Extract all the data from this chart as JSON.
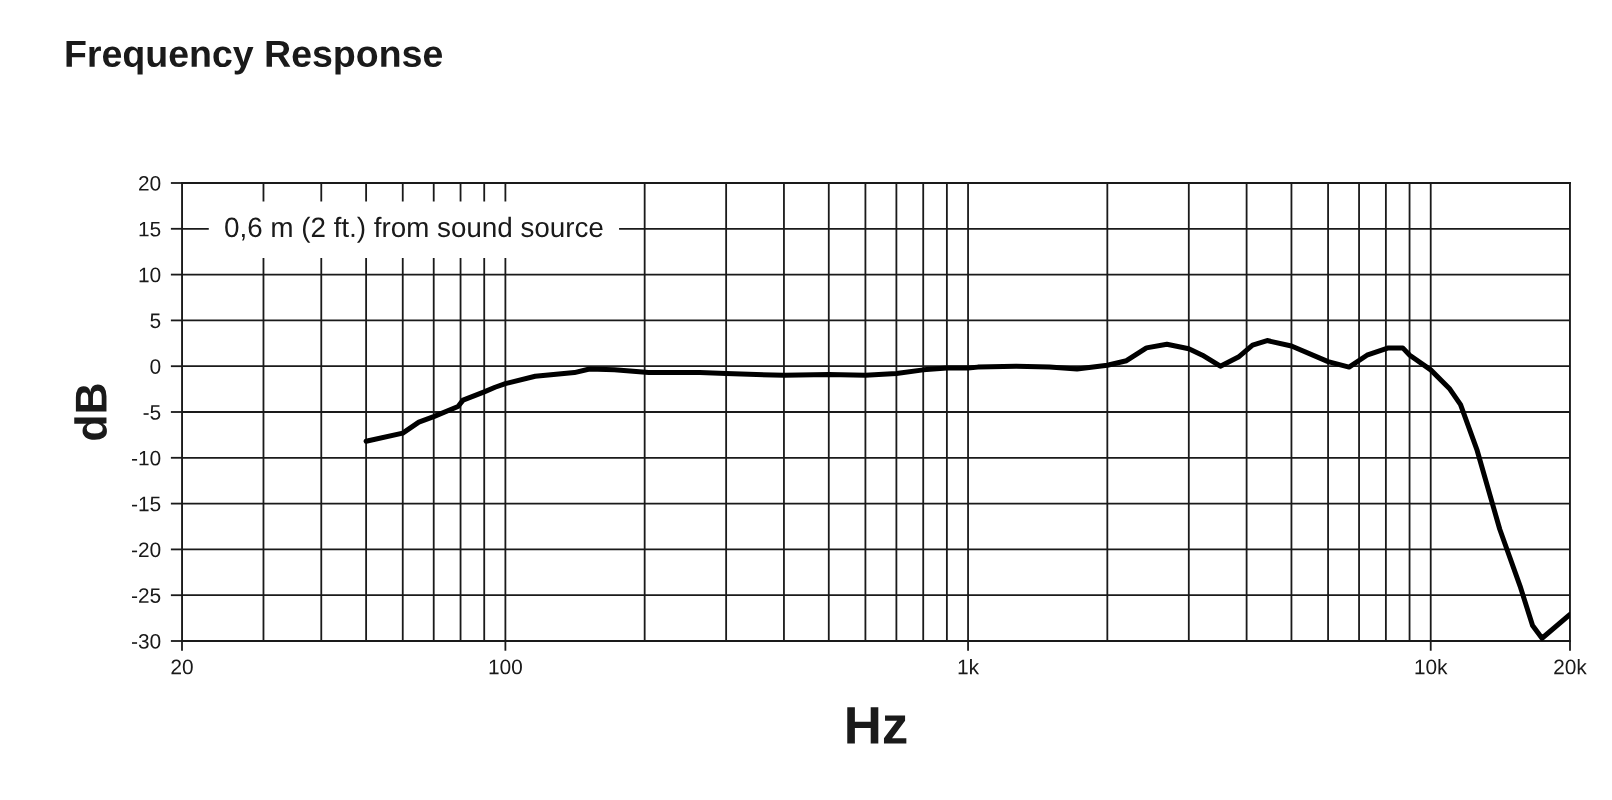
{
  "chart_data": {
    "type": "line",
    "title": "Frequency Response",
    "xlabel": "Hz",
    "ylabel": "dB",
    "annotations": [
      "0,6 m (2 ft.) from sound source"
    ],
    "log": "x",
    "grid": true,
    "line_style": "solid",
    "xlim": [
      20,
      20000
    ],
    "ylim": [
      -30,
      20
    ],
    "xticks": [
      20,
      {
        "value": 30,
        "label": null
      },
      {
        "value": 40,
        "label": null
      },
      {
        "value": 50,
        "label": null
      },
      {
        "value": 60,
        "label": null
      },
      {
        "value": 70,
        "label": null
      },
      {
        "value": 80,
        "label": null
      },
      {
        "value": 90,
        "label": null
      },
      100,
      {
        "value": 200,
        "label": null
      },
      {
        "value": 300,
        "label": null
      },
      {
        "value": 400,
        "label": null
      },
      {
        "value": 500,
        "label": null
      },
      {
        "value": 600,
        "label": null
      },
      {
        "value": 700,
        "label": null
      },
      {
        "value": 800,
        "label": null
      },
      {
        "value": 900,
        "label": null
      },
      {
        "value": 1000,
        "label": "1k"
      },
      {
        "value": 2000,
        "label": null
      },
      {
        "value": 3000,
        "label": null
      },
      {
        "value": 4000,
        "label": null
      },
      {
        "value": 5000,
        "label": null
      },
      {
        "value": 6000,
        "label": null
      },
      {
        "value": 7000,
        "label": null
      },
      {
        "value": 8000,
        "label": null
      },
      {
        "value": 9000,
        "label": null
      },
      {
        "value": 10000,
        "label": "10k"
      },
      {
        "value": 20000,
        "label": "20k"
      }
    ],
    "yticks": [
      -30,
      -25,
      -20,
      -15,
      -10,
      -5,
      0,
      5,
      10,
      15,
      20
    ],
    "series": [
      {
        "color": "#000000",
        "x": [
          50,
          60,
          65,
          70,
          79,
          81,
          90,
          95,
          100,
          116,
          141,
          152,
          172,
          204,
          263,
          300,
          400,
          500,
          600,
          700,
          800,
          900,
          1000,
          1050,
          1270,
          1500,
          1720,
          2000,
          2200,
          2310,
          2430,
          2690,
          3000,
          3210,
          3510,
          3840,
          4120,
          4430,
          5000,
          6000,
          6660,
          7280,
          8100,
          8700,
          9010,
          10000,
          11000,
          11600,
          12600,
          14100,
          15600,
          16600,
          17400,
          20000
        ],
        "values": [
          -8.2,
          -7.3,
          -6.1,
          -5.5,
          -4.4,
          -3.7,
          -2.8,
          -2.3,
          -1.9,
          -1.1,
          -0.7,
          -0.3,
          -0.4,
          -0.7,
          -0.7,
          -0.8,
          -1.0,
          -0.9,
          -1.0,
          -0.8,
          -0.4,
          -0.2,
          -0.2,
          -0.1,
          0.0,
          -0.1,
          -0.3,
          0.1,
          0.6,
          1.3,
          2.0,
          2.4,
          1.9,
          1.2,
          0.0,
          1.0,
          2.3,
          2.8,
          2.2,
          0.5,
          -0.1,
          1.2,
          2.0,
          2.0,
          1.2,
          -0.4,
          -2.5,
          -4.2,
          -9.2,
          -17.8,
          -24.0,
          -28.3,
          -29.7,
          -27.1
        ]
      }
    ]
  }
}
